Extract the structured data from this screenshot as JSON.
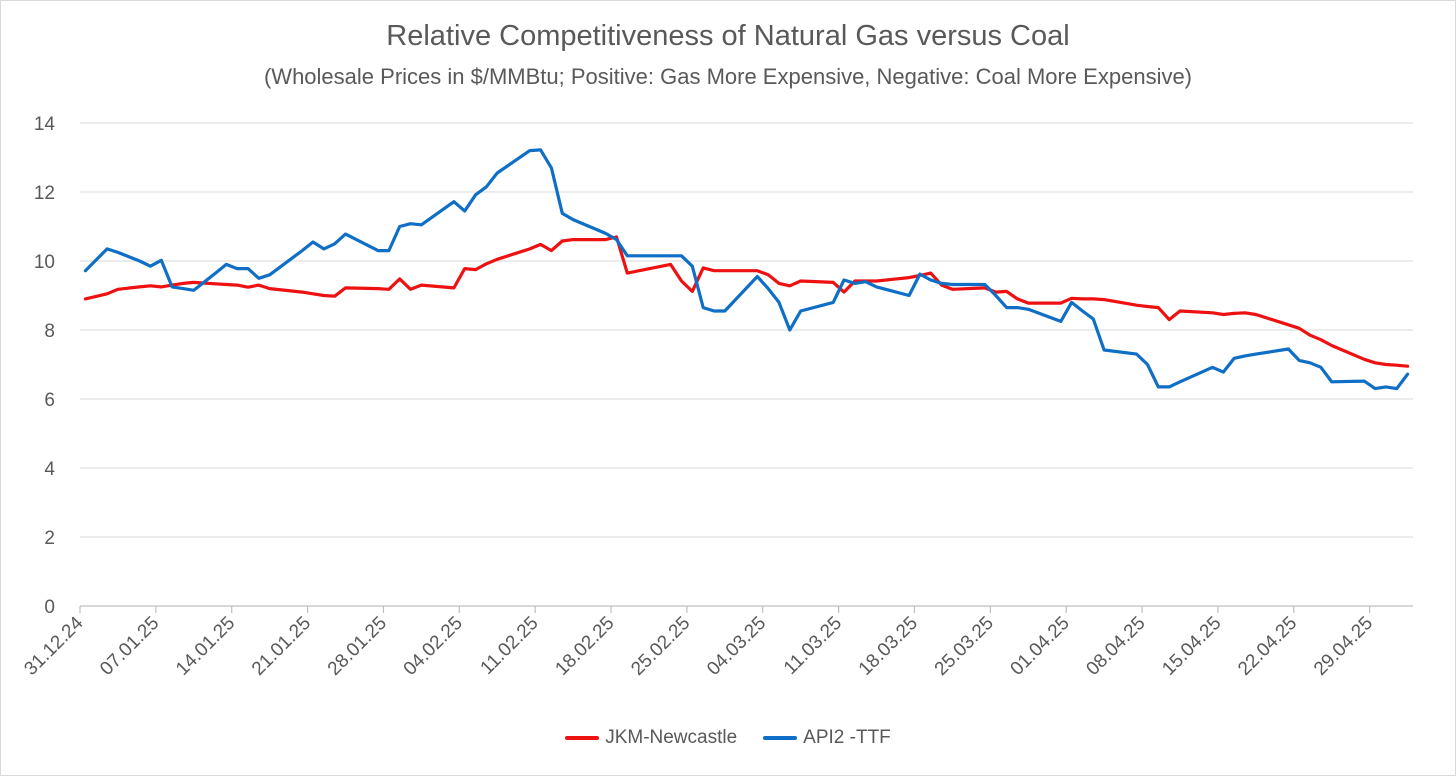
{
  "chart_data": {
    "type": "line",
    "title": "Relative Competitiveness of Natural Gas versus Coal",
    "subtitle": "(Wholesale Prices in $/MMBtu; Positive: Gas More Expensive, Negative: Coal More Expensive)",
    "xlabel": "",
    "ylabel": "",
    "ylim": [
      0,
      14
    ],
    "y_ticks": [
      0,
      2,
      4,
      6,
      8,
      10,
      12,
      14
    ],
    "x_range_days": [
      0,
      123
    ],
    "x_tick_days": [
      0,
      7,
      14,
      21,
      28,
      35,
      42,
      49,
      56,
      63,
      70,
      77,
      84,
      91,
      98,
      105,
      112,
      119
    ],
    "x_tick_labels": [
      "31.12.24",
      "07.01.25",
      "14.01.25",
      "21.01.25",
      "28.01.25",
      "04.02.25",
      "11.02.25",
      "18.02.25",
      "25.02.25",
      "04.03.25",
      "11.03.25",
      "18.03.25",
      "25.03.25",
      "01.04.25",
      "08.04.25",
      "15.04.25",
      "22.04.25",
      "29.04.25"
    ],
    "grid": true,
    "legend_position": "bottom",
    "series": [
      {
        "name": "JKM-Newcastle",
        "color": "#ee1111",
        "x": [
          0.5,
          2.5,
          3.5,
          5.5,
          6.5,
          7.5,
          8.5,
          9.5,
          10.5,
          11.5,
          12.5,
          13.5,
          14.5,
          15.5,
          16.5,
          17.5,
          20.5,
          21.5,
          22.5,
          23.5,
          24.5,
          27.5,
          28.5,
          29.5,
          30.5,
          31.5,
          34.5,
          35.5,
          36.5,
          37.5,
          38.5,
          41.5,
          42.5,
          43.5,
          44.5,
          45.5,
          48.5,
          49.5,
          50.5,
          54.5,
          55.5,
          56.5,
          57.5,
          58.5,
          59.5,
          62.5,
          63.5,
          64.5,
          65.5,
          66.5,
          69.5,
          70.5,
          71.5,
          72.5,
          73.5,
          76.5,
          77.5,
          78.5,
          79.5,
          80.5,
          83.5,
          84.5,
          85.5,
          86.5,
          87.5,
          90.5,
          91.5,
          92.5,
          93.5,
          94.5,
          97.5,
          98.5,
          99.5,
          100.5,
          101.5,
          104.5,
          105.5,
          106.5,
          107.5,
          108.5,
          111.5,
          112.5,
          113.5,
          114.5,
          115.5,
          118.5,
          119.5,
          120.5,
          121.5,
          122.5
        ],
        "values": [
          8.9,
          9.05,
          9.18,
          9.25,
          9.28,
          9.25,
          9.3,
          9.35,
          9.38,
          9.36,
          9.34,
          9.32,
          9.3,
          9.24,
          9.3,
          9.2,
          9.1,
          9.05,
          9.0,
          8.98,
          9.22,
          9.2,
          9.18,
          9.48,
          9.18,
          9.3,
          9.22,
          9.78,
          9.75,
          9.92,
          10.05,
          10.35,
          10.48,
          10.3,
          10.58,
          10.62,
          10.62,
          10.7,
          9.65,
          9.9,
          9.42,
          9.12,
          9.8,
          9.72,
          9.72,
          9.72,
          9.6,
          9.35,
          9.28,
          9.42,
          9.38,
          9.1,
          9.42,
          9.42,
          9.42,
          9.52,
          9.58,
          9.65,
          9.3,
          9.18,
          9.22,
          9.1,
          9.12,
          8.9,
          8.78,
          8.78,
          8.92,
          8.9,
          8.9,
          8.88,
          8.72,
          8.68,
          8.65,
          8.3,
          8.55,
          8.5,
          8.45,
          8.48,
          8.5,
          8.45,
          8.15,
          8.05,
          7.85,
          7.72,
          7.55,
          7.15,
          7.05,
          7.0,
          6.98,
          6.95
        ]
      },
      {
        "name": "API2 -TTF",
        "color": "#0f6fc6",
        "x": [
          0.5,
          2.5,
          3.5,
          5.5,
          6.5,
          7.5,
          8.5,
          9.5,
          10.5,
          11.5,
          12.5,
          13.5,
          14.5,
          15.5,
          16.5,
          17.5,
          20.5,
          21.5,
          22.5,
          23.5,
          24.5,
          27.5,
          28.5,
          29.5,
          30.5,
          31.5,
          34.5,
          35.5,
          36.5,
          37.5,
          38.5,
          41.5,
          42.5,
          43.5,
          44.5,
          45.5,
          48.5,
          49.5,
          50.5,
          54.5,
          55.5,
          56.5,
          57.5,
          58.5,
          59.5,
          62.5,
          63.5,
          64.5,
          65.5,
          66.5,
          69.5,
          70.5,
          71.5,
          72.5,
          73.5,
          76.5,
          77.5,
          78.5,
          79.5,
          80.5,
          83.5,
          84.5,
          85.5,
          86.5,
          87.5,
          90.5,
          91.5,
          92.5,
          93.5,
          94.5,
          97.5,
          98.5,
          99.5,
          100.5,
          101.5,
          104.5,
          105.5,
          106.5,
          107.5,
          108.5,
          111.5,
          112.5,
          113.5,
          114.5,
          115.5,
          118.5,
          119.5,
          120.5,
          121.5,
          122.5
        ],
        "values": [
          9.72,
          10.35,
          10.25,
          10.0,
          9.85,
          10.02,
          9.25,
          9.2,
          9.15,
          9.4,
          9.65,
          9.9,
          9.78,
          9.78,
          9.5,
          9.6,
          10.3,
          10.55,
          10.35,
          10.5,
          10.78,
          10.3,
          10.3,
          11.0,
          11.08,
          11.05,
          11.72,
          11.45,
          11.92,
          12.15,
          12.55,
          13.2,
          13.22,
          12.7,
          11.38,
          11.2,
          10.8,
          10.62,
          10.15,
          10.15,
          10.15,
          9.85,
          8.65,
          8.55,
          8.55,
          9.55,
          9.2,
          8.8,
          8.0,
          8.55,
          8.8,
          9.45,
          9.35,
          9.4,
          9.25,
          9.0,
          9.62,
          9.45,
          9.35,
          9.32,
          9.32,
          9.0,
          8.65,
          8.65,
          8.6,
          8.25,
          8.8,
          8.55,
          8.32,
          7.42,
          7.3,
          7.0,
          6.35,
          6.35,
          6.5,
          6.92,
          6.78,
          7.18,
          7.25,
          7.3,
          7.45,
          7.12,
          7.05,
          6.92,
          6.5,
          6.52,
          6.3,
          6.35,
          6.3,
          6.72
        ]
      }
    ]
  }
}
